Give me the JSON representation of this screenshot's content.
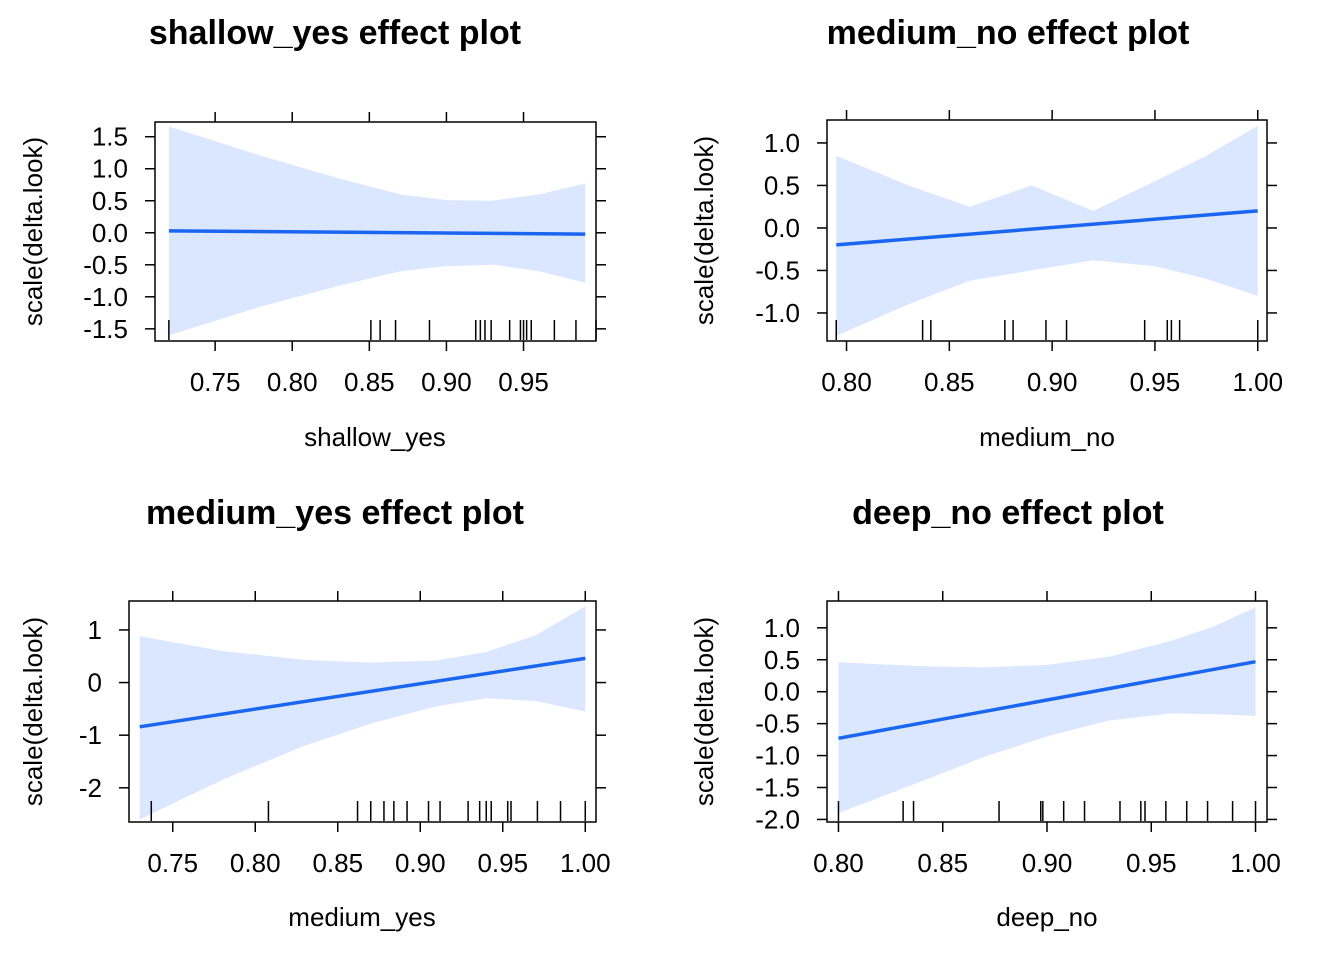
{
  "colors": {
    "background": "#ffffff",
    "band_fill": "#dbe6ff",
    "line": "#1a66f0",
    "axis": "#000000"
  },
  "chart_data": [
    {
      "type": "line",
      "title": "shallow_yes effect plot",
      "xlabel": "shallow_yes",
      "ylabel": "scale(delta.look)",
      "xlim": [
        0.711,
        0.997
      ],
      "ylim": [
        -1.69,
        1.73
      ],
      "x_ticks": [
        0.75,
        0.8,
        0.85,
        0.9,
        0.95
      ],
      "x_tick_labels": [
        "0.75",
        "0.80",
        "0.85",
        "0.90",
        "0.95"
      ],
      "y_ticks": [
        -1.5,
        -1.0,
        -0.5,
        0.0,
        0.5,
        1.0,
        1.5
      ],
      "y_tick_labels": [
        "-1.5",
        "-1.0",
        "-0.5",
        "0.0",
        "0.5",
        "1.0",
        "1.5"
      ],
      "fit_line": [
        {
          "x": 0.72,
          "y": 0.03
        },
        {
          "x": 0.99,
          "y": -0.02
        }
      ],
      "confidence_band": [
        {
          "x": 0.72,
          "lower": -1.6,
          "upper": 1.66
        },
        {
          "x": 0.78,
          "lower": -1.15,
          "upper": 1.2
        },
        {
          "x": 0.83,
          "lower": -0.83,
          "upper": 0.85
        },
        {
          "x": 0.87,
          "lower": -0.6,
          "upper": 0.6
        },
        {
          "x": 0.9,
          "lower": -0.52,
          "upper": 0.51
        },
        {
          "x": 0.93,
          "lower": -0.5,
          "upper": 0.5
        },
        {
          "x": 0.96,
          "lower": -0.6,
          "upper": 0.6
        },
        {
          "x": 0.99,
          "lower": -0.78,
          "upper": 0.77
        }
      ],
      "rug": [
        0.72,
        0.851,
        0.857,
        0.867,
        0.889,
        0.919,
        0.922,
        0.925,
        0.929,
        0.941,
        0.948,
        0.95,
        0.952,
        0.955,
        0.97,
        0.984,
        0.997
      ]
    },
    {
      "type": "line",
      "title": "medium_no effect plot",
      "xlabel": "medium_no",
      "ylabel": "scale(delta.look)",
      "xlim": [
        0.7905,
        1.0045
      ],
      "ylim": [
        -1.33,
        1.27
      ],
      "x_ticks": [
        0.8,
        0.85,
        0.9,
        0.95,
        1.0
      ],
      "x_tick_labels": [
        "0.80",
        "0.85",
        "0.90",
        "0.95",
        "1.00"
      ],
      "y_ticks": [
        -1.0,
        -0.5,
        0.0,
        0.5,
        1.0
      ],
      "y_tick_labels": [
        "-1.0",
        "-0.5",
        "0.0",
        "0.5",
        "1.0"
      ],
      "fit_line": [
        {
          "x": 0.795,
          "y": -0.2
        },
        {
          "x": 1.0,
          "y": 0.2
        }
      ],
      "confidence_band": [
        {
          "x": 0.795,
          "lower": -1.27,
          "upper": 0.85
        },
        {
          "x": 0.83,
          "lower": -0.9,
          "upper": 0.5
        },
        {
          "x": 0.86,
          "lower": -0.62,
          "upper": 0.25
        },
        {
          "x": 0.89,
          "lower": -0.5,
          "upper": 0.5
        },
        {
          "x": 0.92,
          "lower": -0.38,
          "upper": 0.2
        },
        {
          "x": 0.95,
          "lower": -0.45,
          "upper": 0.55
        },
        {
          "x": 0.975,
          "lower": -0.6,
          "upper": 0.85
        },
        {
          "x": 1.0,
          "lower": -0.8,
          "upper": 1.2
        }
      ],
      "rug": [
        0.795,
        0.837,
        0.841,
        0.877,
        0.881,
        0.897,
        0.907,
        0.945,
        0.956,
        0.958,
        0.962,
        1.0
      ]
    },
    {
      "type": "line",
      "title": "medium_yes effect plot",
      "xlabel": "medium_yes",
      "ylabel": "scale(delta.look)",
      "xlim": [
        0.7235,
        1.0065
      ],
      "ylim": [
        -2.65,
        1.55
      ],
      "x_ticks": [
        0.75,
        0.8,
        0.85,
        0.9,
        0.95,
        1.0
      ],
      "x_tick_labels": [
        "0.75",
        "0.80",
        "0.85",
        "0.90",
        "0.95",
        "1.00"
      ],
      "y_ticks": [
        -2,
        -1,
        0,
        1
      ],
      "y_tick_labels": [
        "-2",
        "-1",
        "0",
        "1"
      ],
      "fit_line": [
        {
          "x": 0.73,
          "y": -0.84
        },
        {
          "x": 1.0,
          "y": 0.46
        }
      ],
      "confidence_band": [
        {
          "x": 0.73,
          "lower": -2.6,
          "upper": 0.88
        },
        {
          "x": 0.78,
          "lower": -1.85,
          "upper": 0.6
        },
        {
          "x": 0.83,
          "lower": -1.2,
          "upper": 0.43
        },
        {
          "x": 0.87,
          "lower": -0.78,
          "upper": 0.38
        },
        {
          "x": 0.91,
          "lower": -0.45,
          "upper": 0.42
        },
        {
          "x": 0.94,
          "lower": -0.3,
          "upper": 0.58
        },
        {
          "x": 0.97,
          "lower": -0.35,
          "upper": 0.9
        },
        {
          "x": 1.0,
          "lower": -0.55,
          "upper": 1.45
        }
      ],
      "rug": [
        0.737,
        0.808,
        0.862,
        0.87,
        0.878,
        0.884,
        0.892,
        0.905,
        0.912,
        0.929,
        0.936,
        0.94,
        0.943,
        0.953,
        0.955,
        0.971,
        0.985,
        1.0
      ]
    },
    {
      "type": "line",
      "title": "deep_no effect plot",
      "xlabel": "deep_no",
      "ylabel": "scale(delta.look)",
      "xlim": [
        0.7945,
        1.0055
      ],
      "ylim": [
        -2.04,
        1.42
      ],
      "x_ticks": [
        0.8,
        0.85,
        0.9,
        0.95,
        1.0
      ],
      "x_tick_labels": [
        "0.80",
        "0.85",
        "0.90",
        "0.95",
        "1.00"
      ],
      "y_ticks": [
        -2.0,
        -1.5,
        -1.0,
        -0.5,
        0.0,
        0.5,
        1.0
      ],
      "y_tick_labels": [
        "-2.0",
        "-1.5",
        "-1.0",
        "-0.5",
        "0.0",
        "0.5",
        "1.0"
      ],
      "fit_line": [
        {
          "x": 0.8,
          "y": -0.73
        },
        {
          "x": 1.0,
          "y": 0.47
        }
      ],
      "confidence_band": [
        {
          "x": 0.8,
          "lower": -1.9,
          "upper": 0.46
        },
        {
          "x": 0.84,
          "lower": -1.4,
          "upper": 0.4
        },
        {
          "x": 0.87,
          "lower": -1.02,
          "upper": 0.38
        },
        {
          "x": 0.9,
          "lower": -0.7,
          "upper": 0.42
        },
        {
          "x": 0.93,
          "lower": -0.45,
          "upper": 0.55
        },
        {
          "x": 0.96,
          "lower": -0.34,
          "upper": 0.8
        },
        {
          "x": 0.98,
          "lower": -0.35,
          "upper": 1.02
        },
        {
          "x": 1.0,
          "lower": -0.38,
          "upper": 1.32
        }
      ],
      "rug": [
        0.8,
        0.831,
        0.836,
        0.877,
        0.897,
        0.898,
        0.908,
        0.918,
        0.935,
        0.945,
        0.947,
        0.957,
        0.967,
        0.977,
        0.989,
        1.0
      ]
    }
  ]
}
